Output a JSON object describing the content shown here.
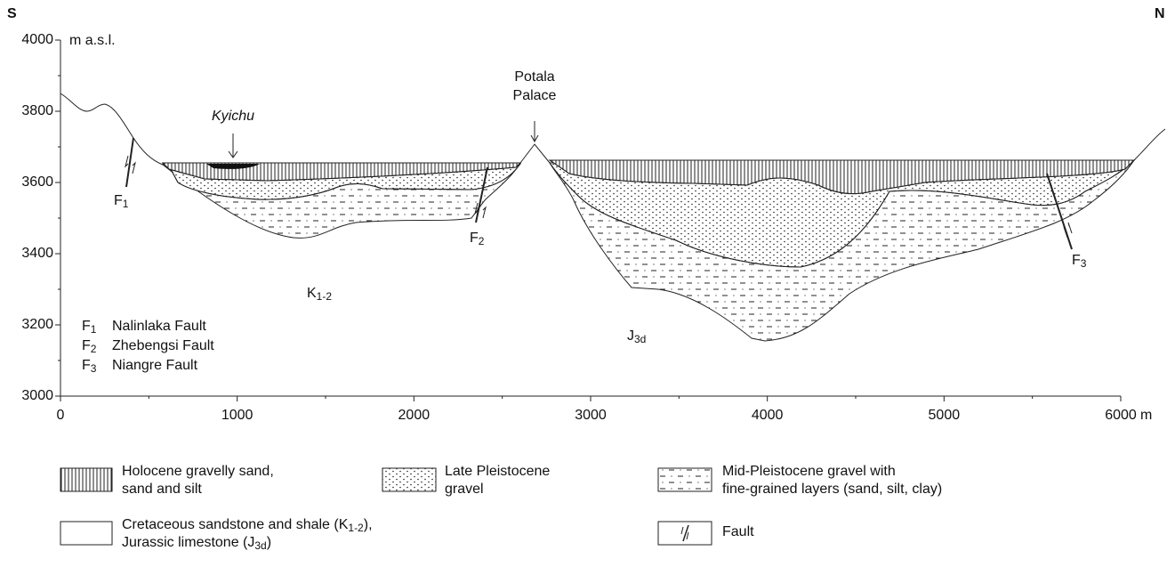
{
  "orientation": {
    "left": "S",
    "right": "N"
  },
  "y_axis": {
    "unit": "m a.s.l.",
    "ticks": [
      3000,
      3200,
      3400,
      3600,
      3800,
      4000
    ]
  },
  "x_axis": {
    "unit": "m",
    "ticks": [
      0,
      1000,
      2000,
      3000,
      4000,
      5000,
      6000
    ]
  },
  "places": {
    "river": "Kyichu",
    "palace": [
      "Potala",
      "Palace"
    ]
  },
  "fault_labels": [
    [
      "F",
      "1"
    ],
    [
      "F",
      "2"
    ],
    [
      "F",
      "3"
    ]
  ],
  "units": [
    [
      "K",
      "1-2"
    ],
    [
      "J",
      "3d"
    ]
  ],
  "fault_key": [
    {
      "code": [
        "F",
        "1"
      ],
      "name": "Nalinlaka Fault"
    },
    {
      "code": [
        "F",
        "2"
      ],
      "name": "Zhebengsi Fault"
    },
    {
      "code": [
        "F",
        "3"
      ],
      "name": "Niangre Fault"
    }
  ],
  "legend": [
    {
      "lines": [
        [
          "Holocene gravelly sand,"
        ],
        [
          "sand and silt"
        ]
      ]
    },
    {
      "lines": [
        [
          "Late Pleistocene"
        ],
        [
          "gravel"
        ]
      ]
    },
    {
      "lines": [
        [
          "Mid-Pleistocene gravel with"
        ],
        [
          "fine-grained layers (sand, silt, clay)"
        ]
      ]
    },
    {
      "lines": [
        [
          "Cretaceous sandstone and shale (K",
          "1-2",
          "),"
        ],
        [
          "Jurassic limestone (J",
          "3d",
          ")"
        ]
      ]
    },
    {
      "lines": [
        [
          "Fault"
        ]
      ]
    }
  ]
}
